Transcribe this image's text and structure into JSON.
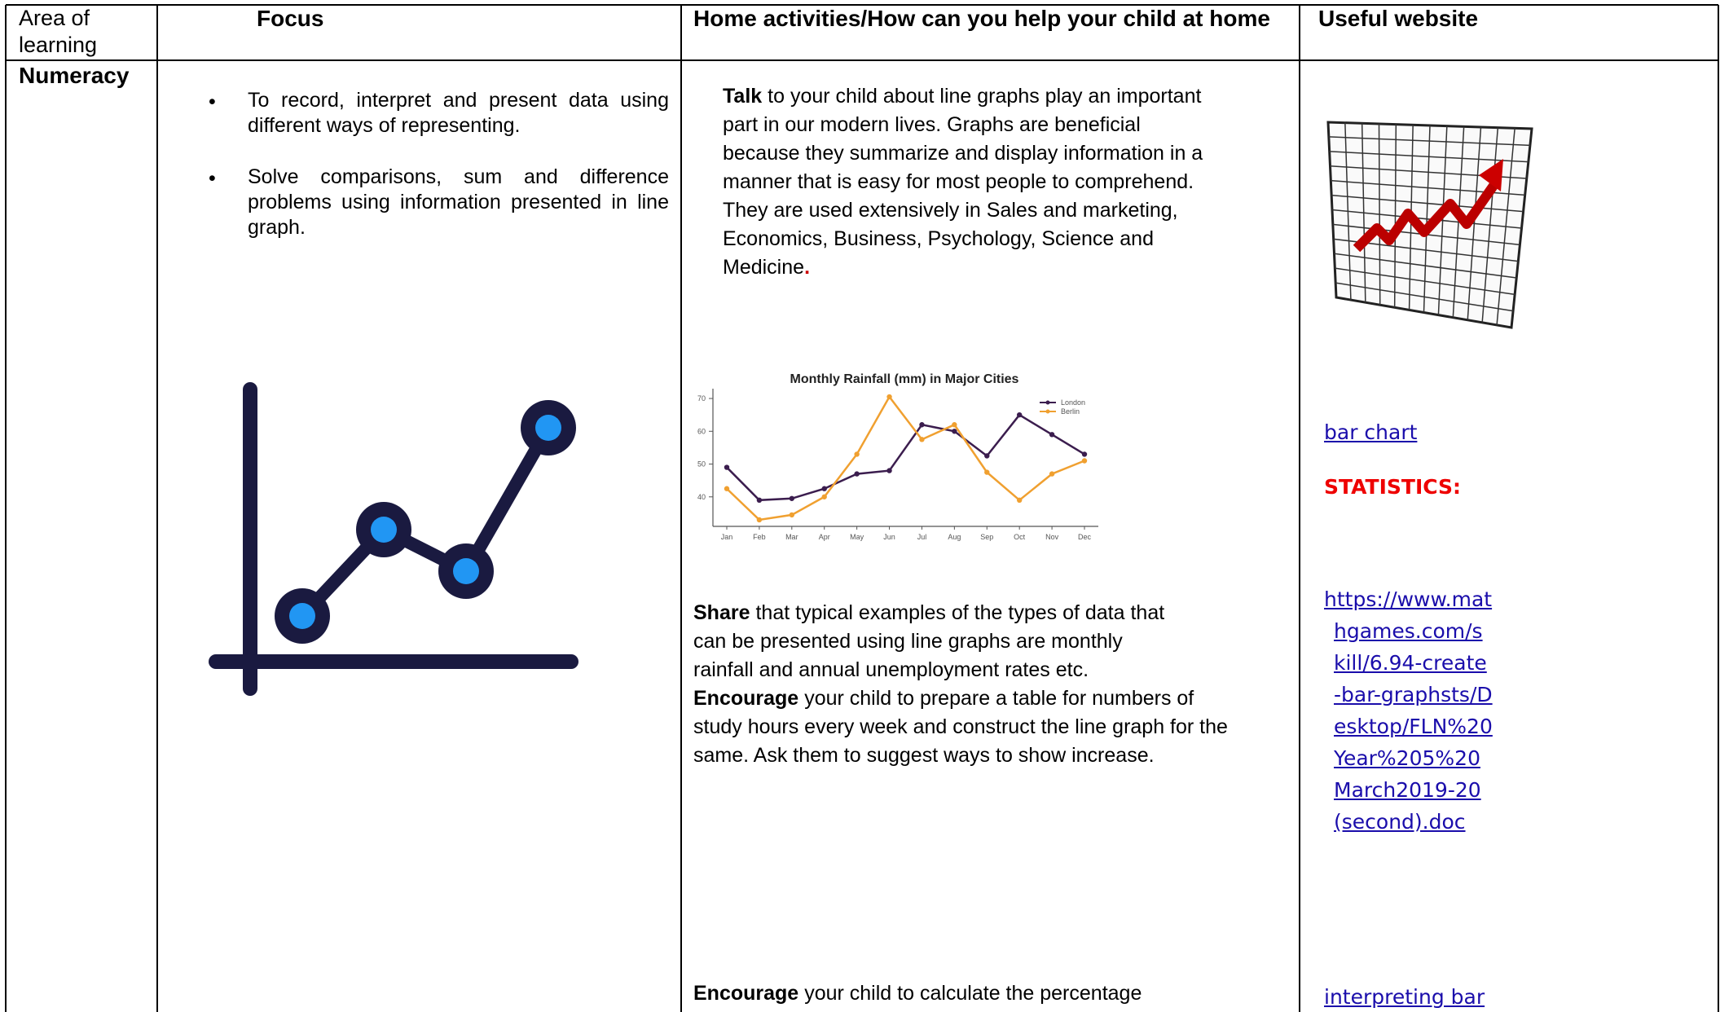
{
  "table": {
    "headers": [
      "Area of learning",
      "Focus",
      "Home activities/How can you help your child at home",
      "Useful website"
    ],
    "rows": [
      {
        "area": "Numeracy",
        "focus": [
          "To record, interpret and present data using different ways of representing.",
          "Solve comparisons, sum and difference problems using information presented in line graph."
        ],
        "home": [
          {
            "bold": "Talk",
            "lines": [
              "to your child about line graphs play an important",
              "part in our modern lives. Graphs are beneficial",
              "because they summarize and display information in a",
              "manner that is easy for most people to comprehend.",
              "They are used extensively in Sales and marketing,",
              "Economics, Business, Psychology, Science and",
              "Medicine"
            ],
            "end": "."
          },
          {
            "bold": "Share",
            "lines": [
              "that typical examples of the types of data that",
              "can be presented using line graphs are monthly",
              "rainfall and annual unemployment rates etc."
            ]
          },
          {
            "bold": "Encourage",
            "lines": [
              "your child to prepare a table for numbers of",
              "study hours every week and construct the line graph for the",
              "same. Ask them to suggest ways to show increase."
            ]
          },
          {
            "bold": "Encourage",
            "lines": [
              "your child to calculate the percentage"
            ]
          }
        ],
        "websites": {
          "link1": "bar chart",
          "heading": "STATISTICS:",
          "link2": "https://www.mathgames.com/skill/6.94-create-bar-graphsts/Desktop/FLN%20Year%205%20March2019-20(second).doc",
          "link3": "interpreting bar"
        }
      }
    ]
  },
  "chart_data": {
    "type": "line",
    "title": "Monthly Rainfall (mm) in Major Cities",
    "categories": [
      "Jan",
      "Feb",
      "Mar",
      "Apr",
      "May",
      "Jun",
      "Jul",
      "Aug",
      "Sep",
      "Oct",
      "Nov",
      "Dec"
    ],
    "series": [
      {
        "name": "London",
        "color": "#3b1d4e",
        "values": [
          49,
          39,
          39.5,
          42.5,
          47,
          48,
          62,
          60,
          52.5,
          65,
          59,
          53
        ]
      },
      {
        "name": "Berlin",
        "color": "#f0a030",
        "values": [
          42.5,
          33,
          34.5,
          40,
          53,
          70.5,
          57.5,
          62,
          47.5,
          39,
          47,
          51
        ]
      }
    ],
    "ylim": [
      31,
      72
    ],
    "yticks": [
      40,
      50,
      60,
      70
    ],
    "legend": "upper right"
  }
}
